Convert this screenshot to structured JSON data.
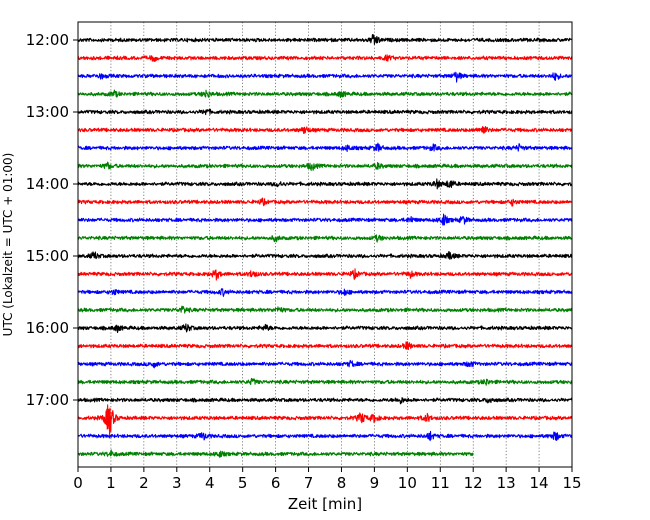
{
  "chart_data": {
    "type": "line",
    "title": "",
    "xlabel": "Zeit  [min]",
    "ylabel": "UTC (Lokalzeit = UTC + 01:00)",
    "xlim": [
      0,
      15
    ],
    "x_ticks": [
      "0",
      "1",
      "2",
      "3",
      "4",
      "5",
      "6",
      "7",
      "8",
      "9",
      "10",
      "11",
      "12",
      "13",
      "14",
      "15"
    ],
    "y_ticks": [
      "12:00",
      "13:00",
      "14:00",
      "15:00",
      "16:00",
      "17:00"
    ],
    "grid": "vertical dotted at each minute",
    "trace_interval_min": 15,
    "colors_cycle": [
      "#000000",
      "#ff0000",
      "#0000ff",
      "#008000"
    ],
    "series": [
      {
        "start": "12:00",
        "color": "#000000",
        "end_min": 15,
        "events": [
          [
            9.0,
            7
          ]
        ]
      },
      {
        "start": "12:15",
        "color": "#ff0000",
        "end_min": 15,
        "events": [
          [
            2.3,
            3
          ],
          [
            9.4,
            2.5
          ]
        ]
      },
      {
        "start": "12:30",
        "color": "#0000ff",
        "end_min": 15,
        "events": [
          [
            0.7,
            2.5
          ],
          [
            11.5,
            5
          ],
          [
            14.5,
            4
          ]
        ]
      },
      {
        "start": "12:45",
        "color": "#008000",
        "end_min": 15,
        "events": [
          [
            1.1,
            3
          ],
          [
            3.9,
            4
          ],
          [
            8.0,
            3
          ]
        ]
      },
      {
        "start": "13:00",
        "color": "#000000",
        "end_min": 15,
        "events": [
          [
            3.9,
            3
          ]
        ]
      },
      {
        "start": "13:15",
        "color": "#ff0000",
        "end_min": 15,
        "events": [
          [
            6.9,
            4
          ],
          [
            12.3,
            5
          ]
        ]
      },
      {
        "start": "13:30",
        "color": "#0000ff",
        "end_min": 15,
        "events": [
          [
            8.2,
            3
          ],
          [
            9.1,
            4
          ],
          [
            10.8,
            3
          ],
          [
            13.4,
            3
          ]
        ]
      },
      {
        "start": "13:45",
        "color": "#008000",
        "end_min": 15,
        "events": [
          [
            0.9,
            3
          ],
          [
            7.1,
            4
          ],
          [
            9.1,
            3
          ]
        ]
      },
      {
        "start": "14:00",
        "color": "#000000",
        "end_min": 15,
        "events": [
          [
            6.1,
            3
          ],
          [
            10.9,
            4
          ],
          [
            11.3,
            5
          ]
        ]
      },
      {
        "start": "14:15",
        "color": "#ff0000",
        "end_min": 15,
        "events": [
          [
            5.6,
            3
          ],
          [
            13.2,
            3
          ]
        ]
      },
      {
        "start": "14:30",
        "color": "#0000ff",
        "end_min": 15,
        "events": [
          [
            10.1,
            3
          ],
          [
            11.1,
            6
          ],
          [
            11.7,
            4
          ]
        ]
      },
      {
        "start": "14:45",
        "color": "#008000",
        "end_min": 15,
        "events": [
          [
            6.0,
            3
          ],
          [
            9.1,
            3
          ]
        ]
      },
      {
        "start": "15:00",
        "color": "#000000",
        "end_min": 15,
        "events": [
          [
            0.5,
            4
          ],
          [
            11.3,
            4
          ]
        ]
      },
      {
        "start": "15:15",
        "color": "#ff0000",
        "end_min": 15,
        "events": [
          [
            4.2,
            5
          ],
          [
            5.3,
            4
          ],
          [
            8.4,
            4
          ],
          [
            10.1,
            3
          ]
        ]
      },
      {
        "start": "15:30",
        "color": "#0000ff",
        "end_min": 15,
        "events": [
          [
            1.1,
            2.5
          ],
          [
            4.4,
            3
          ],
          [
            8.1,
            3
          ]
        ]
      },
      {
        "start": "15:45",
        "color": "#008000",
        "end_min": 15,
        "events": [
          [
            3.2,
            4
          ],
          [
            6.1,
            3
          ]
        ]
      },
      {
        "start": "16:00",
        "color": "#000000",
        "end_min": 15,
        "events": [
          [
            1.2,
            3
          ],
          [
            3.3,
            4
          ],
          [
            5.7,
            3
          ]
        ]
      },
      {
        "start": "16:15",
        "color": "#ff0000",
        "end_min": 15,
        "events": [
          [
            10.0,
            4
          ]
        ]
      },
      {
        "start": "16:30",
        "color": "#0000ff",
        "end_min": 15,
        "events": [
          [
            2.3,
            3
          ],
          [
            8.3,
            3
          ],
          [
            11.9,
            3
          ]
        ]
      },
      {
        "start": "16:45",
        "color": "#008000",
        "end_min": 15,
        "events": [
          [
            5.3,
            3
          ],
          [
            12.4,
            3
          ]
        ]
      },
      {
        "start": "17:00",
        "color": "#000000",
        "end_min": 15,
        "events": [
          [
            9.8,
            3
          ],
          [
            12.5,
            3
          ]
        ]
      },
      {
        "start": "17:15",
        "color": "#ff0000",
        "end_min": 15,
        "events": [
          [
            0.95,
            22
          ],
          [
            8.6,
            6
          ],
          [
            9.0,
            4
          ],
          [
            10.6,
            4
          ]
        ]
      },
      {
        "start": "17:30",
        "color": "#0000ff",
        "end_min": 15,
        "events": [
          [
            3.8,
            4
          ],
          [
            10.7,
            4
          ],
          [
            14.5,
            5
          ]
        ]
      },
      {
        "start": "17:45",
        "color": "#008000",
        "end_min": 12,
        "events": [
          [
            1.0,
            3
          ],
          [
            4.3,
            3
          ]
        ]
      }
    ]
  }
}
